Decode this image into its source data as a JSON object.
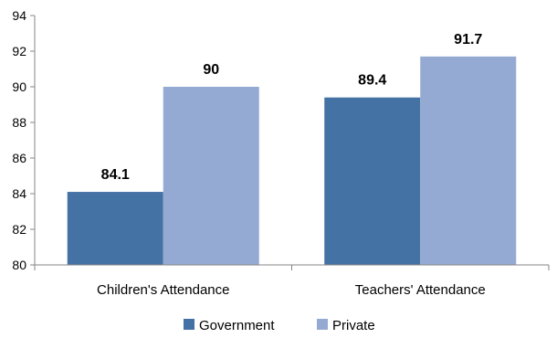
{
  "chart_data": {
    "type": "bar",
    "title": "",
    "xlabel": "",
    "ylabel": "",
    "categories": [
      "Children's Attendance",
      "Teachers' Attendance"
    ],
    "series": [
      {
        "name": "Government",
        "values": [
          84.1,
          89.4
        ],
        "color": "#4472A4"
      },
      {
        "name": "Private",
        "values": [
          90,
          91.7
        ],
        "color": "#95AAD2"
      }
    ],
    "data_labels": [
      [
        "84.1",
        "89.4"
      ],
      [
        "90",
        "91.7"
      ]
    ],
    "ylim": [
      80,
      94
    ],
    "yticks": [
      80,
      82,
      84,
      86,
      88,
      90,
      92,
      94
    ],
    "grid": false,
    "legend": "bottom"
  }
}
